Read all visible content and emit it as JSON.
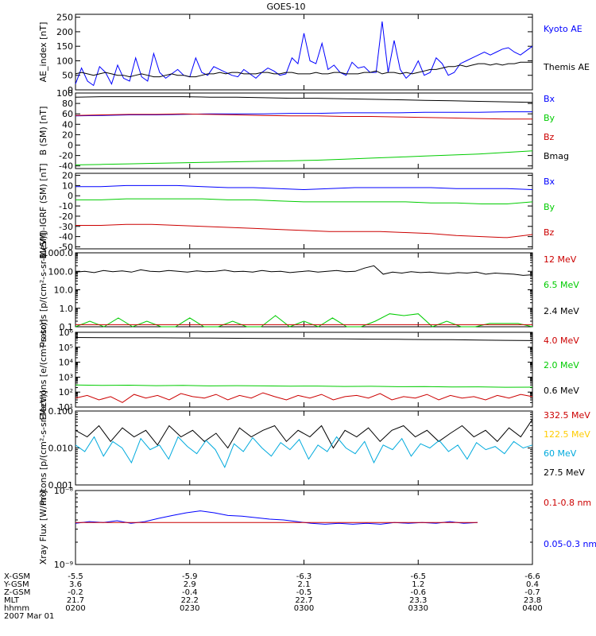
{
  "title": "GOES-10",
  "colors": {
    "black": "#000000",
    "blue": "#0000ff",
    "green": "#00cc00",
    "red": "#cc0000",
    "orange": "#ffcc00",
    "cyan": "#00aadd"
  },
  "chart_data": [
    {
      "type": "line",
      "ylabel": "AE_index [nT]",
      "yticks": [
        "0",
        "50",
        "100",
        "150",
        "200",
        "250"
      ],
      "ylim": [
        0,
        260
      ],
      "legend": [
        {
          "label": "Kyoto AE",
          "color": "#0000ff"
        },
        {
          "label": "Themis AE",
          "color": "#000000"
        }
      ],
      "series": [
        {
          "name": "Kyoto AE",
          "color": "#0000ff",
          "values": [
            20,
            75,
            30,
            15,
            80,
            60,
            20,
            85,
            40,
            30,
            110,
            45,
            30,
            125,
            60,
            40,
            55,
            70,
            50,
            45,
            110,
            60,
            50,
            80,
            70,
            60,
            50,
            45,
            70,
            55,
            40,
            60,
            75,
            65,
            50,
            55,
            110,
            90,
            195,
            100,
            90,
            160,
            70,
            85,
            60,
            50,
            95,
            75,
            80,
            60,
            60,
            235,
            60,
            170,
            70,
            40,
            60,
            100,
            50,
            60,
            110,
            90,
            50,
            60,
            90,
            100,
            110,
            120,
            130,
            120,
            130,
            140,
            145,
            130,
            120,
            135,
            150
          ]
        },
        {
          "name": "Themis AE",
          "color": "#000000",
          "values": [
            55,
            60,
            55,
            50,
            55,
            60,
            55,
            50,
            50,
            45,
            50,
            55,
            50,
            45,
            45,
            50,
            55,
            50,
            50,
            45,
            45,
            50,
            55,
            55,
            60,
            55,
            60,
            60,
            55,
            55,
            55,
            60,
            60,
            55,
            55,
            60,
            60,
            55,
            55,
            55,
            60,
            55,
            55,
            60,
            60,
            55,
            55,
            55,
            60,
            60,
            65,
            55,
            60,
            60,
            55,
            60,
            55,
            60,
            65,
            70,
            70,
            75,
            80,
            80,
            85,
            80,
            85,
            90,
            90,
            85,
            90,
            85,
            90,
            90,
            95,
            95,
            95
          ]
        }
      ]
    },
    {
      "type": "line",
      "ylabel": "B (SM) [nT]",
      "yticks": [
        "-40",
        "-20",
        "0",
        "20",
        "40",
        "60",
        "80",
        "100"
      ],
      "ylim": [
        -45,
        100
      ],
      "legend": [
        {
          "label": "Bx",
          "color": "#0000ff"
        },
        {
          "label": "By",
          "color": "#00cc00"
        },
        {
          "label": "Bz",
          "color": "#cc0000"
        },
        {
          "label": "Bmag",
          "color": "#000000"
        }
      ],
      "series": [
        {
          "name": "Bx",
          "color": "#0000ff",
          "values": [
            56,
            57,
            58,
            58,
            59,
            60,
            60,
            60,
            61,
            61,
            62,
            62,
            62,
            63,
            63,
            63,
            64,
            64
          ]
        },
        {
          "name": "By",
          "color": "#00cc00",
          "values": [
            -38,
            -37,
            -36,
            -35,
            -34,
            -33,
            -32,
            -31,
            -30,
            -29,
            -27,
            -25,
            -23,
            -21,
            -19,
            -17,
            -14,
            -11
          ]
        },
        {
          "name": "Bz",
          "color": "#cc0000",
          "values": [
            57,
            58,
            59,
            59,
            60,
            59,
            58,
            57,
            56,
            56,
            55,
            55,
            54,
            53,
            52,
            51,
            50,
            50
          ]
        },
        {
          "name": "Bmag",
          "color": "#000000",
          "values": [
            92,
            93,
            93,
            93,
            93,
            92,
            92,
            91,
            90,
            90,
            89,
            88,
            87,
            86,
            85,
            84,
            83,
            82
          ]
        }
      ]
    },
    {
      "type": "line",
      "ylabel": "B (SM)-IGRF (SM) [nT]",
      "yticks": [
        "-50",
        "-40",
        "-30",
        "-20",
        "-10",
        "0",
        "10",
        "20"
      ],
      "ylim": [
        -52,
        22
      ],
      "legend": [
        {
          "label": "Bx",
          "color": "#0000ff"
        },
        {
          "label": "By",
          "color": "#00cc00"
        },
        {
          "label": "Bz",
          "color": "#cc0000"
        }
      ],
      "series": [
        {
          "name": "Bx",
          "color": "#0000ff",
          "values": [
            9,
            9,
            10,
            10,
            10,
            9,
            8,
            8,
            7,
            6,
            7,
            8,
            8,
            8,
            8,
            7,
            7,
            7,
            6
          ]
        },
        {
          "name": "By",
          "color": "#00cc00",
          "values": [
            -4,
            -4,
            -3,
            -3,
            -3,
            -3,
            -4,
            -4,
            -5,
            -6,
            -6,
            -6,
            -6,
            -6,
            -7,
            -7,
            -8,
            -8,
            -6
          ]
        },
        {
          "name": "Bz",
          "color": "#cc0000",
          "values": [
            -29,
            -29,
            -28,
            -28,
            -29,
            -30,
            -31,
            -32,
            -33,
            -34,
            -35,
            -35,
            -35,
            -36,
            -37,
            -39,
            -40,
            -41,
            -38
          ]
        }
      ]
    },
    {
      "type": "line",
      "ylabel": "Protons [p/(cm²-s-sr-MeV)]",
      "yscale": "log",
      "yticks": [
        "0.1",
        "1.0",
        "10.0",
        "100.0",
        "1000.0"
      ],
      "ylim": [
        0.1,
        1000
      ],
      "legend": [
        {
          "label": "12 MeV",
          "color": "#cc0000"
        },
        {
          "label": "6.5 MeV",
          "color": "#00cc00"
        },
        {
          "label": "2.4 MeV",
          "color": "#000000"
        }
      ],
      "series": [
        {
          "name": "2.4 MeV",
          "color": "#000000",
          "values": [
            90,
            100,
            85,
            110,
            95,
            105,
            90,
            120,
            100,
            95,
            110,
            100,
            90,
            105,
            95,
            100,
            115,
            95,
            100,
            90,
            110,
            95,
            100,
            85,
            95,
            105,
            90,
            100,
            110,
            95,
            100,
            150,
            200,
            70,
            90,
            80,
            95,
            85,
            90,
            80,
            75,
            85,
            80,
            90,
            70,
            80,
            75,
            70,
            60,
            65
          ]
        },
        {
          "name": "6.5 MeV",
          "color": "#00cc00",
          "values": [
            0.1,
            0.2,
            0.1,
            0.3,
            0.1,
            0.2,
            0.1,
            0.1,
            0.3,
            0.1,
            0.1,
            0.2,
            0.1,
            0.1,
            0.4,
            0.1,
            0.2,
            0.1,
            0.3,
            0.1,
            0.1,
            0.2,
            0.5,
            0.4,
            0.5,
            0.1,
            0.2,
            0.1,
            0.1,
            0.15,
            0.15,
            0.15,
            0.1
          ]
        },
        {
          "name": "12 MeV",
          "color": "#cc0000",
          "values": [
            0.13,
            0.13
          ]
        }
      ]
    },
    {
      "type": "line",
      "ylabel": "Electrons [e/(cm²-s-sr)]",
      "yscale": "log",
      "yticks": [
        "10¹",
        "10²",
        "10³",
        "10⁴",
        "10⁵",
        "10⁶"
      ],
      "ylim": [
        10,
        1000000
      ],
      "legend": [
        {
          "label": "4.0 MeV",
          "color": "#cc0000"
        },
        {
          "label": "2.0 MeV",
          "color": "#00cc00"
        },
        {
          "label": "0.6 MeV",
          "color": "#000000"
        }
      ],
      "series": [
        {
          "name": "0.6 MeV",
          "color": "#000000",
          "values": [
            450000,
            440000,
            430000,
            430000,
            420000,
            410000,
            400000,
            390000,
            380000,
            370000,
            360000,
            350000,
            340000,
            330000,
            320000,
            300000,
            290000,
            280000
          ]
        },
        {
          "name": "2.0 MeV",
          "color": "#00cc00",
          "values": [
            300,
            280,
            290,
            270,
            280,
            260,
            270,
            260,
            250,
            255,
            240,
            245,
            230,
            235,
            220,
            225,
            210,
            215
          ]
        },
        {
          "name": "4.0 MeV",
          "color": "#cc0000",
          "values": [
            40,
            60,
            30,
            50,
            20,
            70,
            40,
            60,
            30,
            80,
            50,
            40,
            70,
            30,
            60,
            40,
            90,
            50,
            30,
            60,
            40,
            70,
            30,
            50,
            60,
            40,
            80,
            30,
            50,
            40,
            70,
            30,
            60,
            40,
            50,
            30,
            60,
            40,
            70,
            50
          ]
        }
      ]
    },
    {
      "type": "line",
      "ylabel": "Protons [p/(cm²-s-sr-MeV)]",
      "yscale": "log",
      "yticks": [
        "0.001",
        "0.010",
        "0.100"
      ],
      "ylim": [
        0.001,
        0.1
      ],
      "legend": [
        {
          "label": "332.5 MeV",
          "color": "#cc0000"
        },
        {
          "label": "122.5 MeV",
          "color": "#ffcc00"
        },
        {
          "label": "60 MeV",
          "color": "#00aadd"
        },
        {
          "label": "27.5 MeV",
          "color": "#000000"
        }
      ],
      "series": [
        {
          "name": "27.5 MeV",
          "color": "#000000",
          "values": [
            0.03,
            0.02,
            0.04,
            0.015,
            0.035,
            0.02,
            0.03,
            0.012,
            0.04,
            0.02,
            0.03,
            0.015,
            0.025,
            0.01,
            0.035,
            0.02,
            0.03,
            0.04,
            0.015,
            0.03,
            0.02,
            0.04,
            0.01,
            0.03,
            0.02,
            0.035,
            0.015,
            0.03,
            0.04,
            0.02,
            0.03,
            0.015,
            0.025,
            0.04,
            0.02,
            0.03,
            0.015,
            0.035,
            0.02,
            0.06
          ]
        },
        {
          "name": "60 MeV",
          "color": "#00aadd",
          "values": [
            0.012,
            0.008,
            0.02,
            0.006,
            0.015,
            0.01,
            0.004,
            0.018,
            0.009,
            0.012,
            0.005,
            0.02,
            0.011,
            0.007,
            0.016,
            0.009,
            0.003,
            0.013,
            0.008,
            0.019,
            0.01,
            0.006,
            0.014,
            0.009,
            0.017,
            0.005,
            0.012,
            0.008,
            0.02,
            0.01,
            0.007,
            0.015,
            0.004,
            0.012,
            0.009,
            0.018,
            0.006,
            0.013,
            0.01,
            0.016,
            0.008,
            0.012,
            0.005,
            0.014,
            0.009,
            0.011,
            0.007,
            0.015,
            0.01,
            0.012
          ]
        }
      ]
    },
    {
      "type": "line",
      "ylabel": "Xray Flux [W/m²]",
      "yscale": "log",
      "yticks": [
        "10⁻⁹",
        "10⁻⁸"
      ],
      "ylim": [
        1e-09,
        1e-08
      ],
      "legend": [
        {
          "label": "0.1-0.8 nm",
          "color": "#cc0000"
        },
        {
          "label": "0.05-0.3 nm",
          "color": "#0000ff"
        }
      ],
      "series": [
        {
          "name": "0.05-0.3 nm",
          "color": "#0000ff",
          "values": [
            3.6e-09,
            3.8e-09,
            3.7e-09,
            3.9e-09,
            3.6e-09,
            3.8e-09,
            4.2e-09,
            4.6e-09,
            5e-09,
            5.3e-09,
            5e-09,
            4.6e-09,
            4.5e-09,
            4.3e-09,
            4.1e-09,
            4e-09,
            3.8e-09,
            3.6e-09,
            3.5e-09,
            3.6e-09,
            3.5e-09,
            3.6e-09,
            3.5e-09,
            3.7e-09,
            3.6e-09,
            3.7e-09,
            3.6e-09,
            3.8e-09,
            3.6e-09,
            3.7e-09
          ]
        },
        {
          "name": "0.1-0.8 nm",
          "color": "#cc0000",
          "values": [
            3.7e-09,
            3.7e-09,
            3.7e-09,
            3.7e-09,
            3.7e-09,
            3.7e-09,
            3.7e-09,
            3.7e-09,
            3.7e-09,
            3.7e-09,
            3.7e-09,
            3.7e-09
          ]
        }
      ]
    }
  ],
  "x_axis": {
    "rows": [
      {
        "label": "X-GSM",
        "values": [
          "-5.5",
          "-5.9",
          "-6.3",
          "-6.5",
          "-6.6"
        ]
      },
      {
        "label": "Y-GSM",
        "values": [
          "3.6",
          "2.9",
          "2.1",
          "1.2",
          "0.4"
        ]
      },
      {
        "label": "Z-GSM",
        "values": [
          "-0.2",
          "-0.4",
          "-0.5",
          "-0.6",
          "-0.7"
        ]
      },
      {
        "label": "MLT",
        "values": [
          "21.7",
          "22.2",
          "22.7",
          "23.3",
          "23.8"
        ]
      },
      {
        "label": "hhmm",
        "values": [
          "0200",
          "0230",
          "0300",
          "0330",
          "0400"
        ]
      }
    ],
    "date": "2007 Mar 01"
  }
}
